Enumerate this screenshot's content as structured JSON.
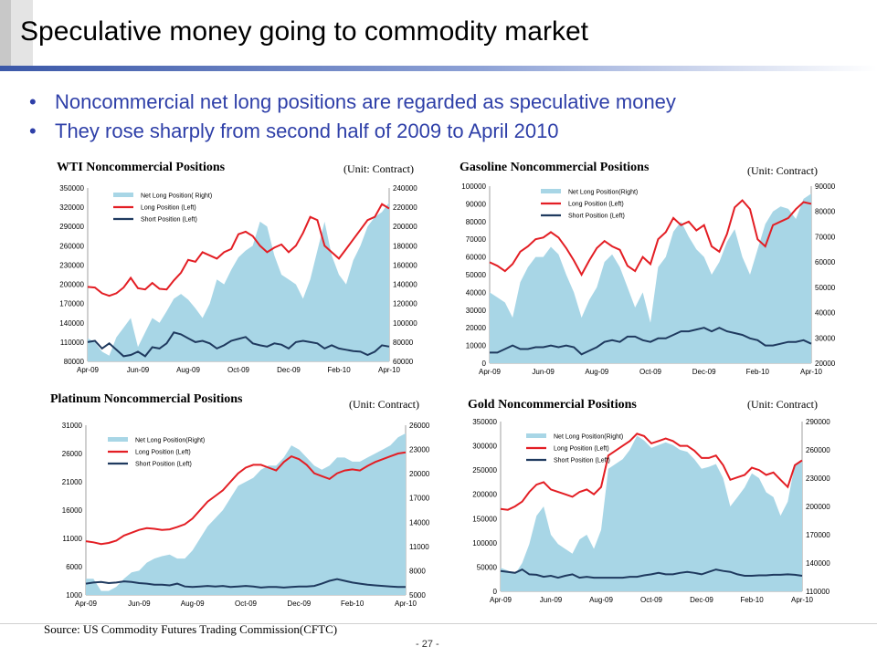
{
  "slide": {
    "title": "Speculative money going to commodity market",
    "bullets": [
      "Noncommercial net long positions are regarded as speculative money",
      "They rose sharply from second half of 2009 to April 2010"
    ],
    "source": "Source: US Commodity Futures Trading Commission(CFTC)",
    "page_number": "- 27 -"
  },
  "colors": {
    "area": "#a8d6e6",
    "long": "#e31e24",
    "short": "#1f3a5f",
    "bullet_text": "#2e3fa8"
  },
  "chart_data": [
    {
      "type": "area",
      "title": "WTI Noncommercial Positions",
      "unit": "(Unit: Contract)",
      "x_ticks": [
        "Apr-09",
        "Jun-09",
        "Aug-09",
        "Oct-09",
        "Dec-09",
        "Feb-10",
        "Apr-10"
      ],
      "y_left": {
        "ticks": [
          "350000",
          "320000",
          "290000",
          "260000",
          "230000",
          "200000",
          "170000",
          "140000",
          "110000",
          "80000"
        ],
        "min": 80000,
        "max": 350000
      },
      "y_right": {
        "ticks": [
          "240000",
          "220000",
          "200000",
          "180000",
          "160000",
          "140000",
          "120000",
          "100000",
          "80000",
          "60000"
        ],
        "min": 60000,
        "max": 240000
      },
      "legend": [
        "Net Long Position( Right)",
        "Long Position (Left)",
        "Short Position (Left)"
      ],
      "series": [
        {
          "name": "Net Long Position( Right)",
          "axis": "right",
          "kind": "area",
          "values": [
            84000,
            80000,
            70000,
            66000,
            85000,
            95000,
            105000,
            75000,
            90000,
            105000,
            100000,
            112000,
            125000,
            130000,
            124000,
            115000,
            105000,
            120000,
            145000,
            140000,
            155000,
            168000,
            175000,
            180000,
            205000,
            200000,
            170000,
            150000,
            145000,
            140000,
            125000,
            145000,
            175000,
            205000,
            170000,
            150000,
            140000,
            165000,
            180000,
            200000,
            210000,
            215000,
            225000
          ]
        },
        {
          "name": "Long Position (Left)",
          "axis": "left",
          "kind": "line",
          "values": [
            196000,
            195000,
            186000,
            182000,
            186000,
            195000,
            210000,
            194000,
            192000,
            202000,
            193000,
            192000,
            206000,
            218000,
            238000,
            235000,
            250000,
            245000,
            240000,
            250000,
            255000,
            278000,
            282000,
            275000,
            260000,
            250000,
            257000,
            262000,
            250000,
            260000,
            280000,
            305000,
            300000,
            260000,
            250000,
            240000,
            255000,
            270000,
            285000,
            300000,
            305000,
            325000,
            318000
          ]
        },
        {
          "name": "Short Position (Left)",
          "axis": "left",
          "kind": "line",
          "values": [
            110000,
            112000,
            100000,
            108000,
            98000,
            88000,
            90000,
            95000,
            88000,
            102000,
            100000,
            108000,
            125000,
            122000,
            116000,
            110000,
            112000,
            108000,
            100000,
            105000,
            112000,
            115000,
            118000,
            108000,
            105000,
            103000,
            108000,
            106000,
            100000,
            110000,
            112000,
            110000,
            108000,
            100000,
            105000,
            100000,
            98000,
            96000,
            95000,
            90000,
            95000,
            105000,
            103000
          ]
        }
      ]
    },
    {
      "type": "area",
      "title": "Gasoline Noncommercial Positions",
      "unit": "(Unit: Contract)",
      "x_ticks": [
        "Apr-09",
        "Jun-09",
        "Aug-09",
        "Oct-09",
        "Dec-09",
        "Feb-10",
        "Apr-10"
      ],
      "y_left": {
        "ticks": [
          "100000",
          "90000",
          "80000",
          "70000",
          "60000",
          "50000",
          "40000",
          "30000",
          "20000",
          "10000",
          "0"
        ],
        "min": 0,
        "max": 100000
      },
      "y_right": {
        "ticks": [
          "90000",
          "80000",
          "70000",
          "60000",
          "50000",
          "40000",
          "30000",
          "20000"
        ],
        "min": 20000,
        "max": 90000
      },
      "legend": [
        "Net Long Position(Right)",
        "Long Position (Left)",
        "Short Position (Left)"
      ],
      "series": [
        {
          "name": "Net Long Position(Right)",
          "axis": "right",
          "kind": "area",
          "values": [
            48000,
            46000,
            44000,
            38000,
            52000,
            58000,
            62000,
            62000,
            66000,
            63000,
            55000,
            48000,
            38000,
            45000,
            50000,
            60000,
            63000,
            58000,
            50000,
            42000,
            48000,
            36000,
            58000,
            62000,
            72000,
            76000,
            70000,
            65000,
            62000,
            55000,
            60000,
            68000,
            73000,
            62000,
            55000,
            65000,
            75000,
            80000,
            82000,
            81000,
            77000,
            85000,
            87000
          ]
        },
        {
          "name": "Long Position (Left)",
          "axis": "left",
          "kind": "line",
          "values": [
            57000,
            55000,
            52000,
            56000,
            63000,
            66000,
            70000,
            71000,
            74000,
            71000,
            65000,
            58000,
            50000,
            58000,
            65000,
            69000,
            66000,
            64000,
            55000,
            52000,
            60000,
            56000,
            70000,
            74000,
            82000,
            78000,
            80000,
            75000,
            78000,
            66000,
            63000,
            73000,
            88000,
            92000,
            87000,
            70000,
            66000,
            78000,
            80000,
            82000,
            87000,
            91000,
            90000
          ]
        },
        {
          "name": "Short Position (Left)",
          "axis": "left",
          "kind": "line",
          "values": [
            6000,
            6000,
            8000,
            10000,
            8000,
            8000,
            9000,
            9000,
            10000,
            9000,
            10000,
            9000,
            5000,
            7000,
            9000,
            12000,
            13000,
            12000,
            15000,
            15000,
            13000,
            12000,
            14000,
            14000,
            16000,
            18000,
            18000,
            19000,
            20000,
            18000,
            20000,
            18000,
            17000,
            16000,
            14000,
            13000,
            10000,
            10000,
            11000,
            12000,
            12000,
            13000,
            11000
          ]
        }
      ]
    },
    {
      "type": "area",
      "title": "Platinum Noncommercial Positions",
      "unit": "(Unit: Contract)",
      "x_ticks": [
        "Apr-09",
        "Jun-09",
        "Aug-09",
        "Oct-09",
        "Dec-09",
        "Feb-10",
        "Apr-10"
      ],
      "y_left": {
        "ticks": [
          "31000",
          "26000",
          "21000",
          "16000",
          "11000",
          "6000",
          "1000"
        ],
        "min": 1000,
        "max": 31000
      },
      "y_right": {
        "ticks": [
          "26000",
          "23000",
          "20000",
          "17000",
          "14000",
          "11000",
          "8000",
          "5000"
        ],
        "min": 5000,
        "max": 26000
      },
      "legend": [
        "Net Long Position(Right)",
        "Long Position (Left)",
        "Short Position (Left)"
      ],
      "series": [
        {
          "name": "Net Long Position(Right)",
          "axis": "right",
          "kind": "area",
          "values": [
            7000,
            7000,
            5500,
            5500,
            6000,
            7000,
            7800,
            8000,
            9000,
            9500,
            9800,
            10000,
            9500,
            9500,
            10500,
            12000,
            13500,
            14500,
            15500,
            17000,
            18500,
            19000,
            19500,
            20500,
            21000,
            21000,
            22000,
            23500,
            23000,
            22000,
            21000,
            20500,
            21000,
            22000,
            22000,
            21500,
            21500,
            22000,
            22500,
            23000,
            23500,
            24500,
            25000
          ]
        },
        {
          "name": "Long Position (Left)",
          "axis": "left",
          "kind": "line",
          "values": [
            10500,
            10300,
            10000,
            10200,
            10600,
            11500,
            12000,
            12500,
            12800,
            12700,
            12500,
            12600,
            13000,
            13500,
            14500,
            16000,
            17500,
            18500,
            19500,
            21000,
            22500,
            23500,
            24000,
            24000,
            23500,
            23000,
            24500,
            25500,
            25000,
            24000,
            22500,
            22000,
            21500,
            22500,
            23000,
            23200,
            23000,
            23800,
            24500,
            25000,
            25500,
            26000,
            26200
          ]
        },
        {
          "name": "Short Position (Left)",
          "axis": "left",
          "kind": "line",
          "values": [
            3000,
            3200,
            3300,
            3100,
            3200,
            3400,
            3300,
            3100,
            3000,
            2800,
            2800,
            2700,
            3000,
            2500,
            2400,
            2500,
            2600,
            2500,
            2600,
            2400,
            2500,
            2600,
            2500,
            2300,
            2400,
            2400,
            2300,
            2400,
            2500,
            2500,
            2600,
            3000,
            3500,
            3800,
            3500,
            3200,
            3000,
            2800,
            2700,
            2600,
            2500,
            2400,
            2400
          ]
        }
      ]
    },
    {
      "type": "area",
      "title": "Gold Noncommercial Positions",
      "unit": "(Unit: Contract)",
      "x_ticks": [
        "Apr-09",
        "Jun-09",
        "Aug-09",
        "Oct-09",
        "Dec-09",
        "Feb-10",
        "Apr-10"
      ],
      "y_left": {
        "ticks": [
          "350000",
          "300000",
          "250000",
          "200000",
          "150000",
          "100000",
          "50000",
          "0"
        ],
        "min": 0,
        "max": 350000
      },
      "y_right": {
        "ticks": [
          "290000",
          "260000",
          "230000",
          "200000",
          "170000",
          "140000",
          "110000"
        ],
        "min": 110000,
        "max": 290000
      },
      "legend": [
        "Net Long Position(Right)",
        "Long Position (Left)",
        "Short Position (Left)"
      ],
      "series": [
        {
          "name": "Net Long Position(Right)",
          "axis": "right",
          "kind": "area",
          "values": [
            135000,
            132000,
            128000,
            140000,
            160000,
            190000,
            200000,
            170000,
            160000,
            155000,
            150000,
            165000,
            170000,
            155000,
            175000,
            240000,
            245000,
            250000,
            260000,
            275000,
            270000,
            262000,
            265000,
            268000,
            265000,
            260000,
            258000,
            250000,
            240000,
            242000,
            245000,
            230000,
            200000,
            210000,
            220000,
            235000,
            230000,
            215000,
            210000,
            190000,
            205000,
            245000,
            250000
          ]
        },
        {
          "name": "Long Position (Left)",
          "axis": "left",
          "kind": "line",
          "values": [
            170000,
            168000,
            175000,
            185000,
            205000,
            220000,
            225000,
            210000,
            205000,
            200000,
            195000,
            205000,
            210000,
            200000,
            215000,
            280000,
            290000,
            300000,
            310000,
            325000,
            320000,
            305000,
            310000,
            315000,
            310000,
            300000,
            300000,
            290000,
            275000,
            275000,
            280000,
            260000,
            230000,
            235000,
            240000,
            255000,
            250000,
            240000,
            245000,
            230000,
            215000,
            260000,
            270000
          ]
        },
        {
          "name": "Short Position (Left)",
          "axis": "left",
          "kind": "line",
          "values": [
            42000,
            40000,
            38000,
            45000,
            35000,
            34000,
            30000,
            32000,
            28000,
            32000,
            35000,
            28000,
            30000,
            28000,
            28000,
            28000,
            28000,
            28000,
            30000,
            30000,
            33000,
            35000,
            38000,
            35000,
            35000,
            38000,
            40000,
            38000,
            35000,
            40000,
            45000,
            42000,
            40000,
            35000,
            32000,
            32000,
            33000,
            33000,
            34000,
            34000,
            35000,
            34000,
            32000
          ]
        }
      ]
    }
  ]
}
